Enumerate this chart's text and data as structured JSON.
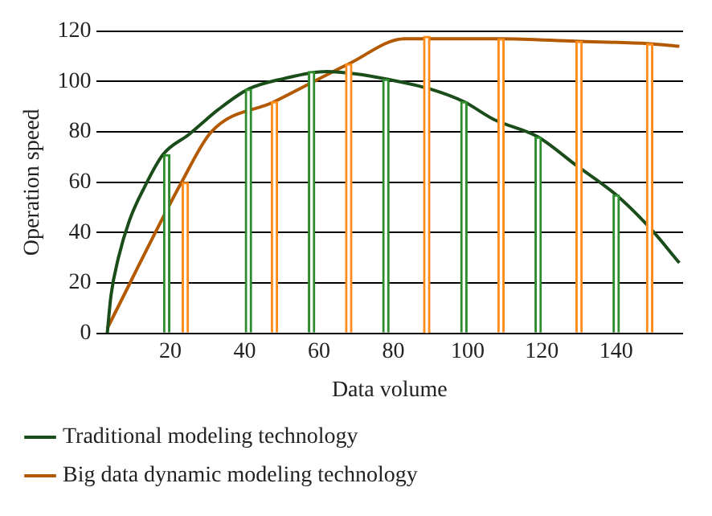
{
  "chart_data": {
    "type": "line",
    "xlabel": "Data volume",
    "ylabel": "Operation speed",
    "xlim": [
      0,
      158
    ],
    "xticks": [
      20,
      40,
      60,
      80,
      100,
      120,
      140
    ],
    "ylim": [
      0,
      120
    ],
    "yticks": [
      0,
      20,
      40,
      60,
      80,
      100,
      120
    ],
    "grid": "y",
    "legend": "bottom",
    "marker": "none",
    "line_style": "solid",
    "series": [
      {
        "type": "bar",
        "color": "#2e8b2e",
        "x": [
          19,
          41,
          58,
          78,
          99,
          119,
          140
        ],
        "values": [
          71,
          97,
          104,
          101,
          92,
          78,
          55
        ]
      },
      {
        "type": "bar",
        "color": "#ff8c1a",
        "x": [
          24,
          48,
          68,
          89,
          109,
          130,
          149
        ],
        "values": [
          60,
          92,
          107,
          118,
          117,
          116,
          115
        ]
      },
      {
        "name": "Traditional modeling technology",
        "color": "#1a4d1a",
        "x": [
          3,
          4,
          6,
          9,
          13,
          18,
          25,
          33,
          41,
          50,
          62,
          70,
          78,
          90,
          99,
          107,
          119,
          129,
          140,
          149,
          157
        ],
        "values": [
          0,
          15,
          30,
          45,
          58,
          71,
          79,
          89,
          97,
          101,
          104,
          103,
          101,
          97,
          92,
          85,
          78,
          67,
          55,
          42,
          28
        ]
      },
      {
        "name": "Big data dynamic modeling technology",
        "color": "#b35900",
        "x": [
          3,
          23,
          31,
          48,
          68,
          83,
          109,
          129,
          149,
          157
        ],
        "values": [
          2,
          60,
          80,
          92,
          107,
          117,
          117,
          116,
          115,
          114
        ]
      }
    ]
  }
}
